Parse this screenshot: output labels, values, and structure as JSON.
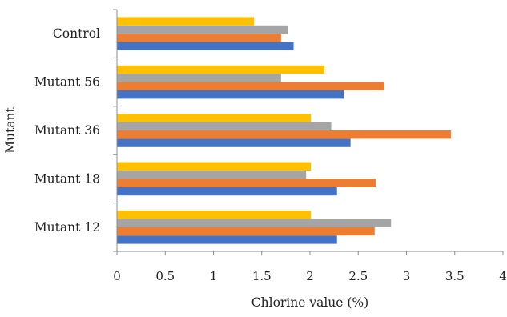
{
  "chart_data": {
    "type": "bar",
    "orientation": "horizontal",
    "categories": [
      "Mutant 12",
      "Mutant 18",
      "Mutant 36",
      "Mutant 56",
      "Control"
    ],
    "series": [
      {
        "color": "#4472C4",
        "values": [
          2.28,
          2.28,
          2.42,
          2.35,
          1.83
        ]
      },
      {
        "color": "#ED7D31",
        "values": [
          2.67,
          2.68,
          3.46,
          2.77,
          1.7
        ]
      },
      {
        "color": "#A5A5A5",
        "values": [
          2.84,
          1.96,
          2.22,
          1.7,
          1.77
        ]
      },
      {
        "color": "#FFC000",
        "values": [
          2.01,
          2.01,
          2.01,
          2.15,
          1.42
        ]
      }
    ],
    "xlabel": "Chlorine value (%)",
    "ylabel": "Mutant",
    "xlim": [
      0,
      4
    ],
    "xticks": [
      "0",
      "0.5",
      "1",
      "1.5",
      "2",
      "2.5",
      "3",
      "3.5",
      "4"
    ],
    "grid": false,
    "legend": "none"
  }
}
